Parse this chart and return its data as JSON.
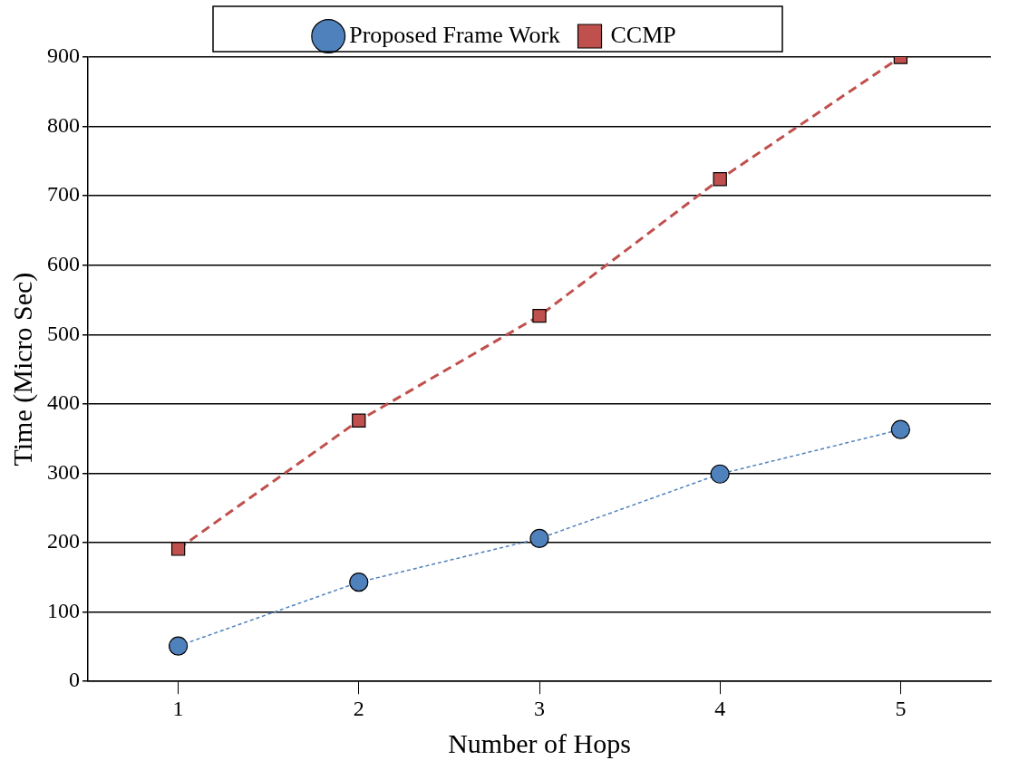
{
  "chart_data": {
    "type": "line",
    "xlabel": "Number of Hops",
    "ylabel": "Time (Micro Sec)",
    "categories": [
      "1",
      "2",
      "3",
      "4",
      "5"
    ],
    "series": [
      {
        "name": "Proposed Frame Work",
        "color": "#4f81bd",
        "marker": "circle",
        "line_style": "dotted",
        "values": [
          51,
          143,
          206,
          299,
          363
        ]
      },
      {
        "name": "CCMP",
        "color": "#c0504d",
        "marker": "square",
        "line_style": "dashed",
        "values": [
          191,
          376,
          527,
          724,
          900
        ]
      }
    ],
    "ylim": [
      0,
      900
    ],
    "yticks": [
      0,
      100,
      200,
      300,
      400,
      500,
      600,
      700,
      800,
      900
    ],
    "grid": "y",
    "legend": "top"
  }
}
